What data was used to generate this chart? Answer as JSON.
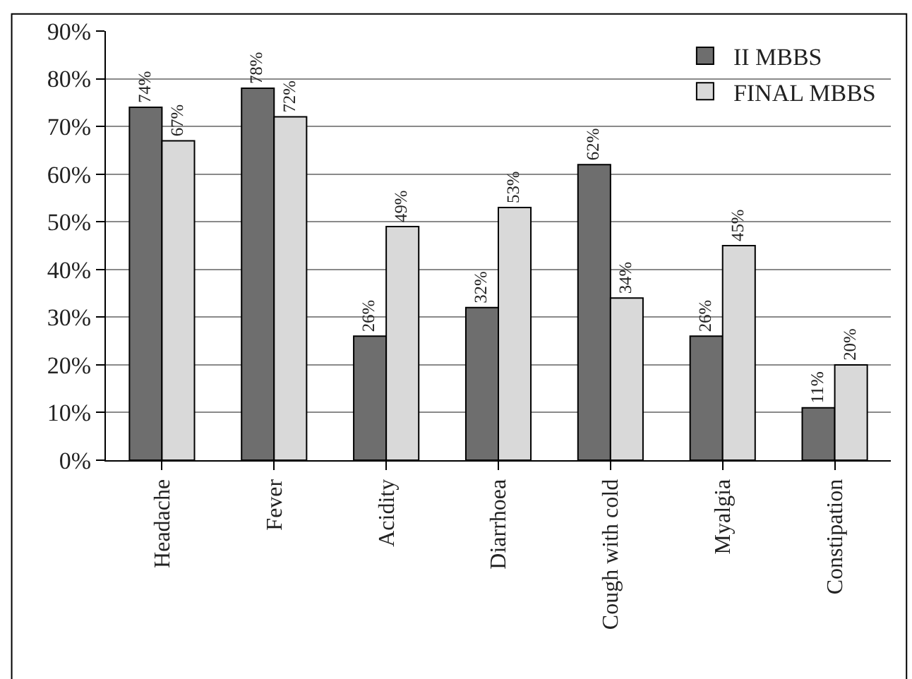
{
  "chart_data": {
    "type": "bar",
    "categories": [
      "Headache",
      "Fever",
      "Acidity",
      "Diarrhoea",
      "Cough with cold",
      "Myalgia",
      "Constipation"
    ],
    "series": [
      {
        "name": "II MBBS",
        "color": "#6e6e6e",
        "values": [
          74,
          78,
          26,
          32,
          62,
          26,
          11
        ],
        "value_labels": [
          "74%",
          "78%",
          "26%",
          "32%",
          "62%",
          "26%",
          "11%"
        ]
      },
      {
        "name": "FINAL MBBS",
        "color": "#d9d9d9",
        "values": [
          67,
          72,
          49,
          53,
          34,
          45,
          20
        ],
        "value_labels": [
          "67%",
          "72%",
          "49%",
          "53%",
          "34%",
          "45%",
          "20%"
        ]
      }
    ],
    "ylim": [
      0,
      90
    ],
    "yticks": [
      {
        "value": 0,
        "label": "0%"
      },
      {
        "value": 10,
        "label": "10%"
      },
      {
        "value": 20,
        "label": "20%"
      },
      {
        "value": 30,
        "label": "30%"
      },
      {
        "value": 40,
        "label": "40%"
      },
      {
        "value": 50,
        "label": "50%"
      },
      {
        "value": 60,
        "label": "60%"
      },
      {
        "value": 70,
        "label": "70%"
      },
      {
        "value": 80,
        "label": "80%"
      },
      {
        "value": 90,
        "label": "90%"
      }
    ],
    "grid": "y",
    "legend": "top right"
  }
}
